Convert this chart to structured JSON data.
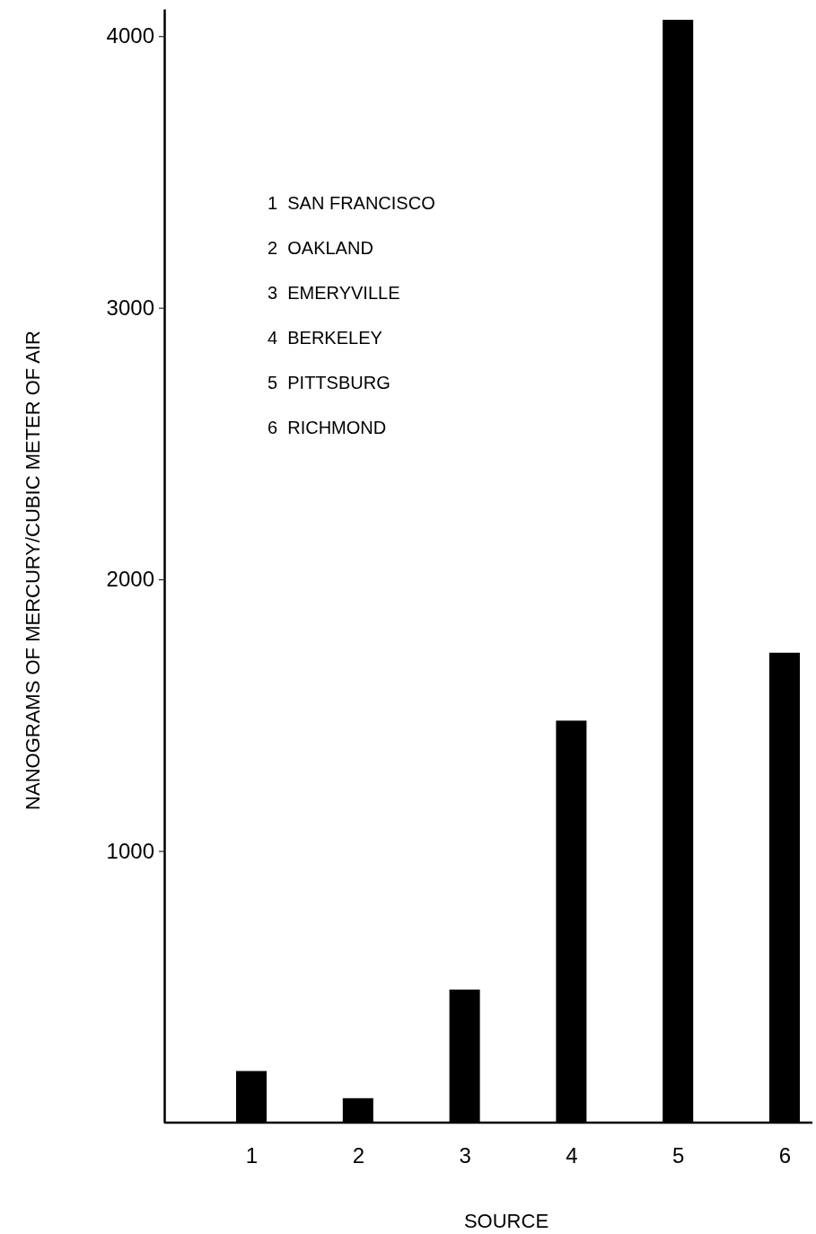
{
  "chart_data": {
    "type": "bar",
    "xlabel": "SOURCE",
    "ylabel": "NANOGRAMS OF MERCURY/CUBIC METER OF AIR",
    "categories": [
      "1",
      "2",
      "3",
      "4",
      "5",
      "6"
    ],
    "values": [
      190,
      90,
      490,
      1480,
      4060,
      1730
    ],
    "color": "#000000",
    "ylim": [
      0,
      4100
    ],
    "yticks": [
      1000,
      2000,
      3000,
      4000
    ],
    "grid": false,
    "annotations": [
      "1  SAN FRANCISCO",
      "2  OAKLAND",
      "3  EMERYVILLE",
      "4  BERKELEY",
      "5  PITTSBURG",
      "6  RICHMOND"
    ]
  }
}
